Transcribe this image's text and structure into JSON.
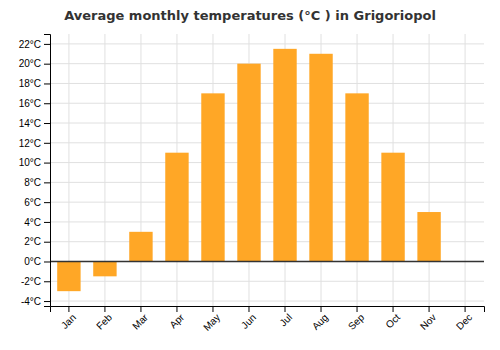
{
  "chart_data": {
    "type": "bar",
    "title": "Average monthly temperatures (°C ) in Grigoriopol",
    "categories": [
      "Jan",
      "Feb",
      "Mar",
      "Apr",
      "May",
      "Jun",
      "Jul",
      "Aug",
      "Sep",
      "Oct",
      "Nov",
      "Dec"
    ],
    "values": [
      -3.0,
      -1.5,
      3.0,
      11.0,
      17.0,
      20.0,
      21.5,
      21.0,
      17.0,
      11.0,
      5.0,
      0.0
    ],
    "color": "#FFA726",
    "ylim": [
      -4.5,
      23
    ],
    "yticks": [
      {
        "value": -4,
        "label": "-4°C"
      },
      {
        "value": -2,
        "label": "-2°C"
      },
      {
        "value": 0,
        "label": "0°C"
      },
      {
        "value": 2,
        "label": "2°C"
      },
      {
        "value": 4,
        "label": "4°C"
      },
      {
        "value": 6,
        "label": "6°C"
      },
      {
        "value": 8,
        "label": "8°C"
      },
      {
        "value": 10,
        "label": "10°C"
      },
      {
        "value": 12,
        "label": "12°C"
      },
      {
        "value": 14,
        "label": "14°C"
      },
      {
        "value": 16,
        "label": "16°C"
      },
      {
        "value": 18,
        "label": "18°C"
      },
      {
        "value": 20,
        "label": "20°C"
      },
      {
        "value": 22,
        "label": "22°C"
      }
    ],
    "grid": true
  }
}
